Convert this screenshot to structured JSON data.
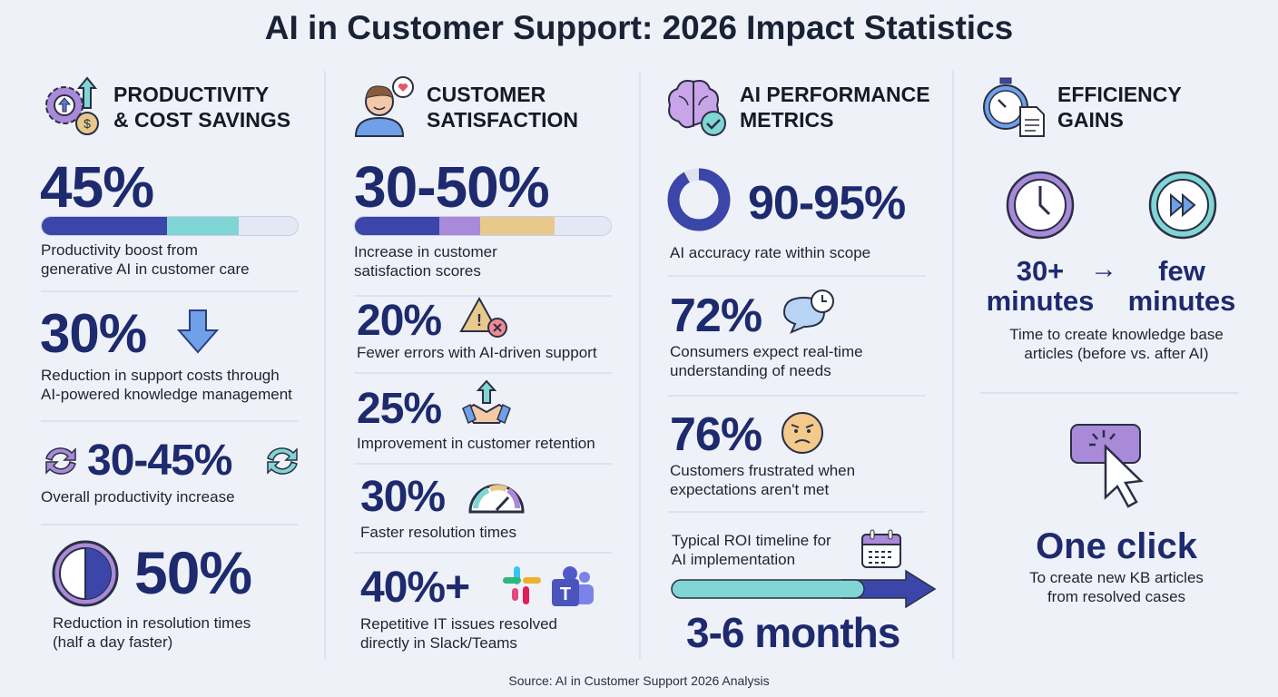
{
  "title": "AI in Customer Support: 2026 Impact Statistics",
  "source": "Source: AI in Customer Support 2026 Analysis",
  "colors": {
    "navy": "#3b46a8",
    "teal": "#7fd6d4",
    "purple": "#a98ad8",
    "tan": "#e8c98c",
    "track": "#e4e7f4",
    "number": "#1e2a6e"
  },
  "col1": {
    "heading1": "PRODUCTIVITY",
    "heading2": "& COST SAVINGS",
    "icon": "gear-arrow-dollar-icon",
    "s1": {
      "value": "45%",
      "desc1": "Productivity boost from",
      "desc2": "generative AI in customer care",
      "bar": [
        0.49,
        0.28
      ]
    },
    "s2": {
      "value": "30%",
      "icon": "down-arrow-icon",
      "desc1": "Reduction in support costs through",
      "desc2": "AI-powered knowledge management"
    },
    "s3": {
      "value": "30-45%",
      "icon": "cycle-arrows-icon",
      "desc1": "Overall productivity increase"
    },
    "s4": {
      "value": "50%",
      "icon": "half-clock-icon",
      "desc1": "Reduction in resolution times",
      "desc2": "(half a day faster)"
    }
  },
  "col2": {
    "heading1": "CUSTOMER",
    "heading2": "SATISFACTION",
    "icon": "happy-customer-icon",
    "s1": {
      "value": "30-50%",
      "desc1": "Increase in customer",
      "desc2": "satisfaction scores",
      "bar": [
        0.33,
        0.16,
        0.29
      ]
    },
    "s2": {
      "value": "20%",
      "icon": "warning-error-icon",
      "desc1": "Fewer errors with AI-driven support"
    },
    "s3": {
      "value": "25%",
      "icon": "handshake-icon",
      "desc1": "Improvement in customer retention"
    },
    "s4": {
      "value": "30%",
      "icon": "speedometer-icon",
      "desc1": "Faster resolution times"
    },
    "s5": {
      "value": "40%+",
      "icon": "slack-teams-icon",
      "desc1": "Repetitive IT issues resolved",
      "desc2": "directly in Slack/Teams"
    }
  },
  "col3": {
    "heading1": "AI PERFORMANCE",
    "heading2": "METRICS",
    "icon": "brain-check-icon",
    "s1": {
      "value": "90-95%",
      "donut": 0.92,
      "desc1": "AI accuracy rate within scope"
    },
    "s2": {
      "value": "72%",
      "icon": "chat-clock-icon",
      "desc1": "Consumers expect real-time",
      "desc2": "understanding of needs"
    },
    "s3": {
      "value": "76%",
      "icon": "frustrated-face-icon",
      "desc1": "Customers frustrated when",
      "desc2": "expectations aren't met"
    },
    "s4": {
      "desc1": "Typical ROI timeline for",
      "desc2": "AI implementation",
      "value": "3-6 months",
      "icon": "calendar-icon"
    }
  },
  "col4": {
    "heading1": "EFFICIENCY",
    "heading2": "GAINS",
    "icon": "stopwatch-document-icon",
    "before1": "30+",
    "before2": "minutes",
    "arrow": "→",
    "after1": "few",
    "after2": "minutes",
    "desc1": "Time to create knowledge base",
    "desc2": "articles (before vs. after AI)",
    "value": "One click",
    "desc3": "To create new KB articles",
    "desc4": "from resolved cases"
  }
}
